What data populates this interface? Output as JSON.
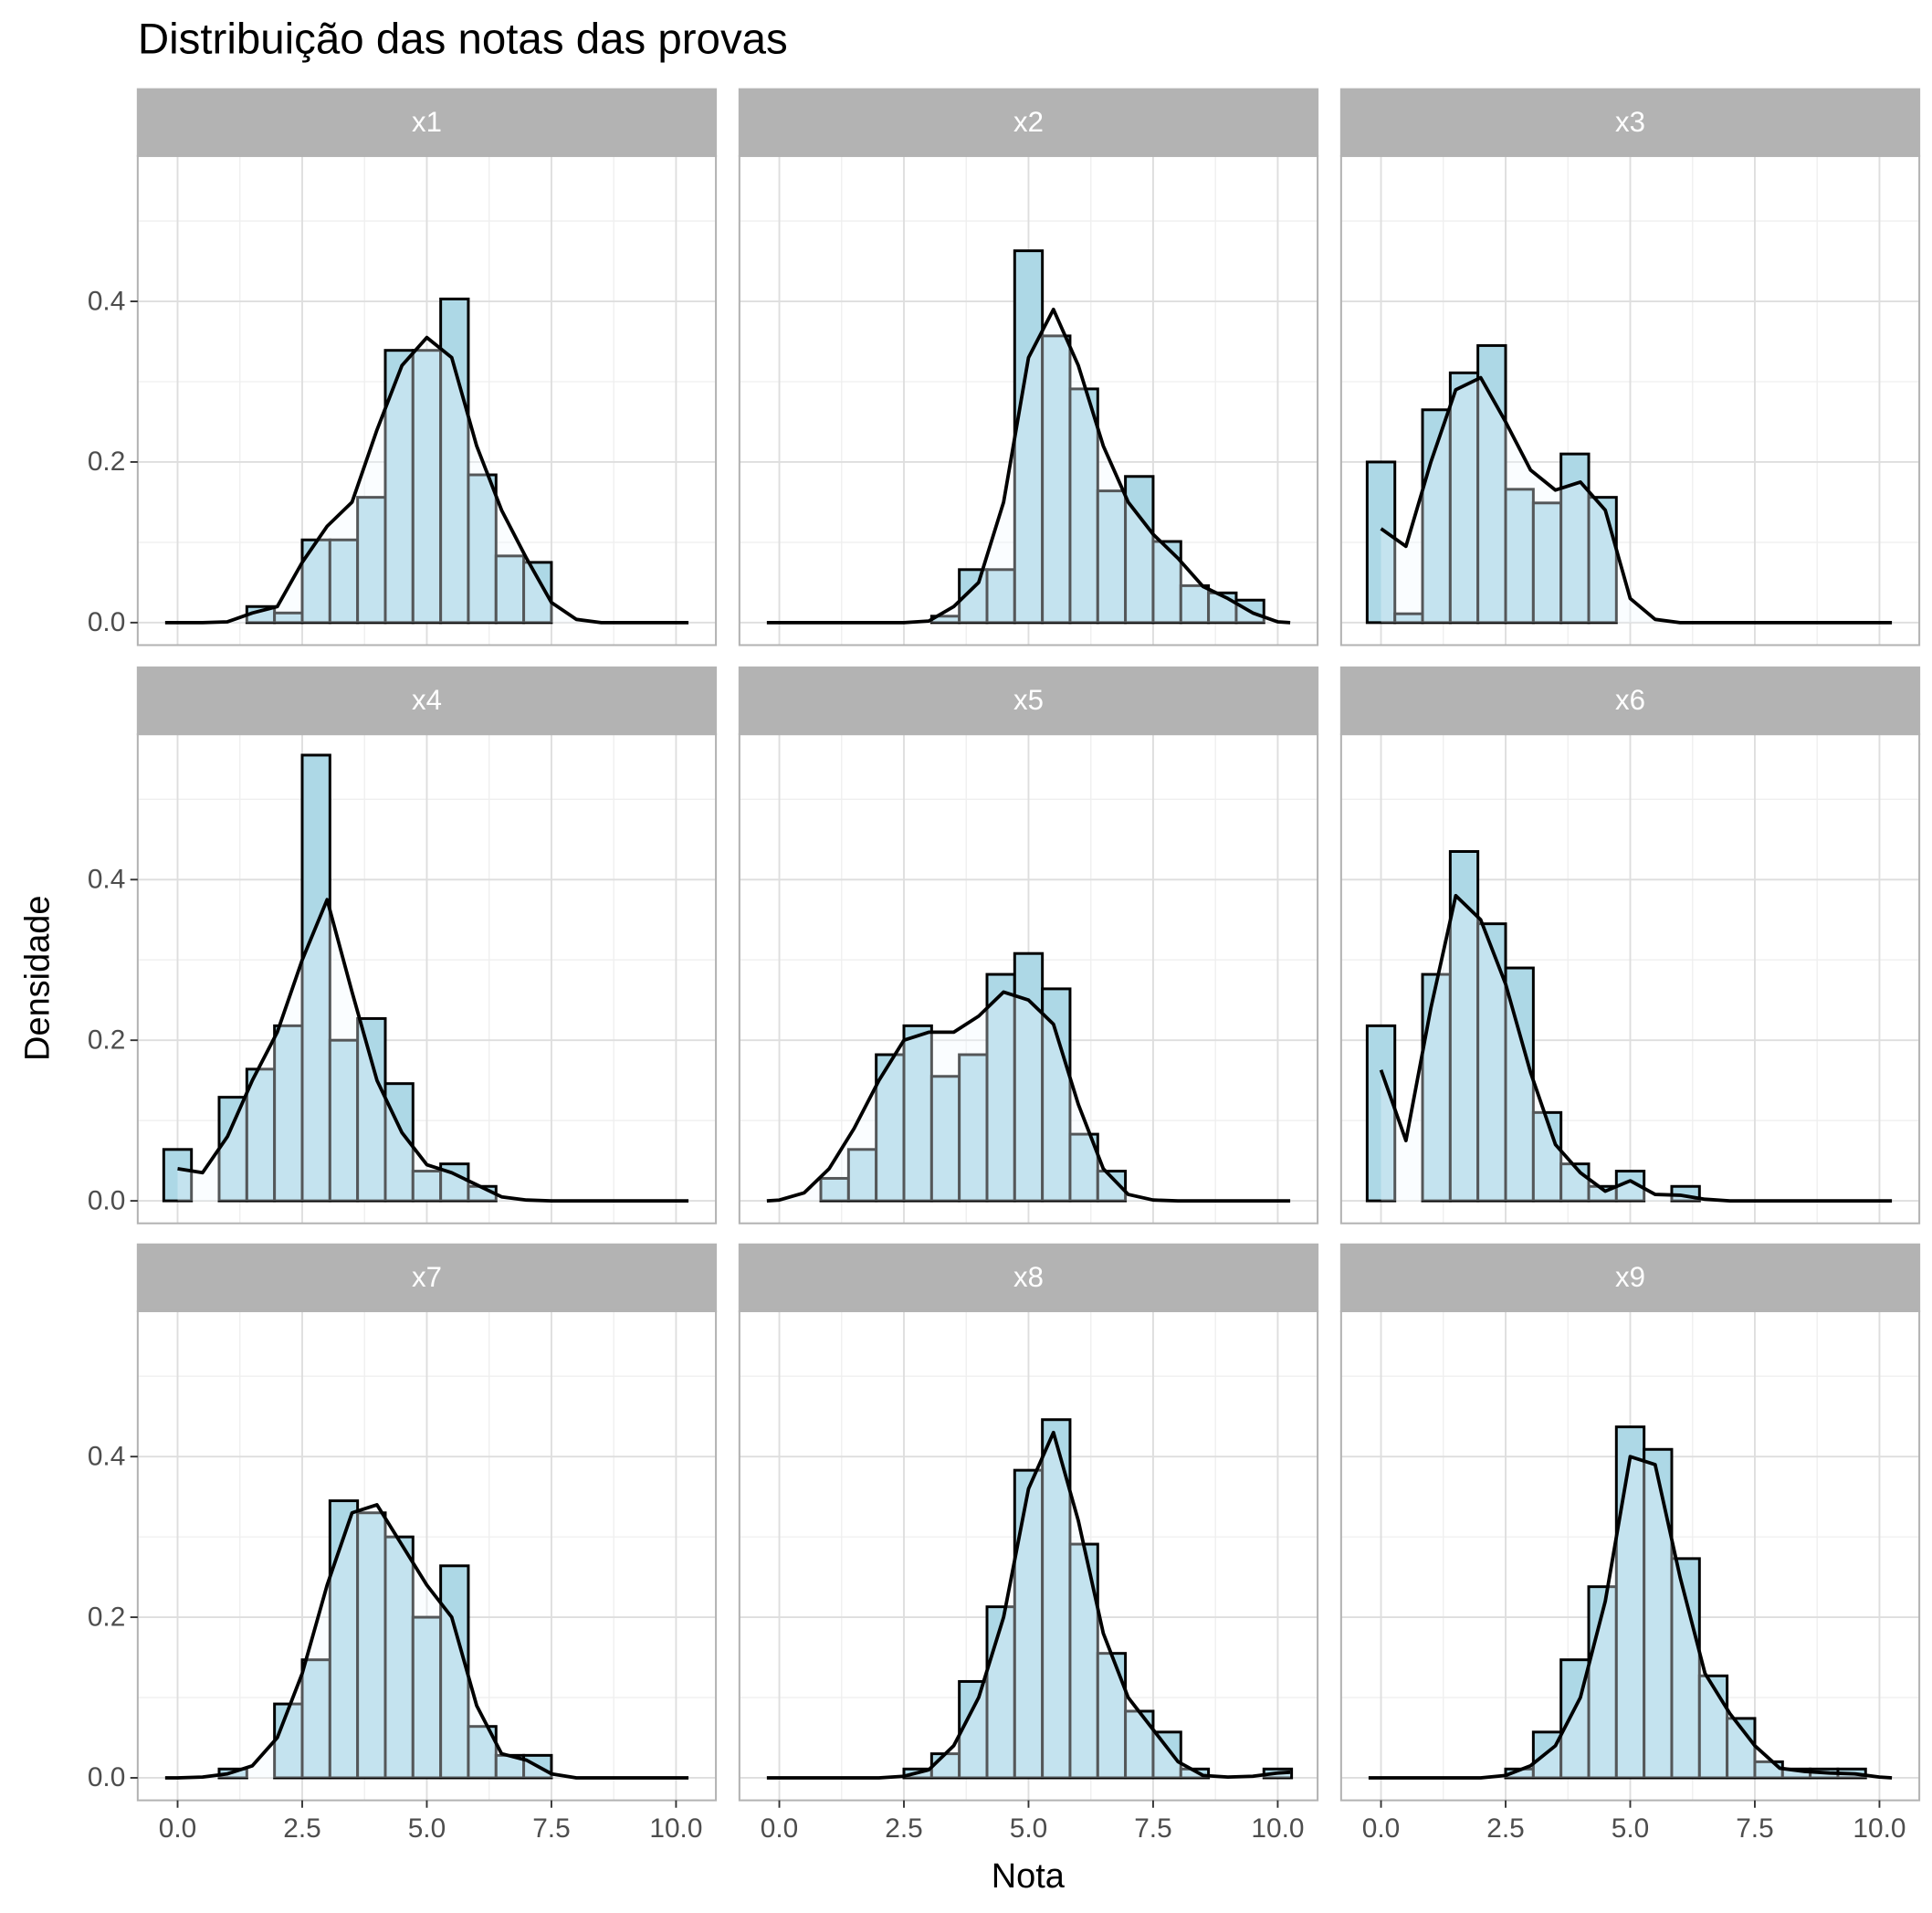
{
  "title": "Distribuição das notas das provas",
  "x_label": "Nota",
  "y_label": "Densidade",
  "xlim": [
    -0.8,
    10.8
  ],
  "ylim": [
    -0.028,
    0.581
  ],
  "xticks": [
    {
      "value": 0,
      "label": "0.0"
    },
    2.5,
    {
      "value": 5,
      "label": "5.0"
    },
    7.5,
    {
      "value": 10,
      "label": "10.0"
    }
  ],
  "yticks": [
    {
      "value": 0,
      "label": "0.0"
    },
    0.2,
    0.4
  ],
  "grid": true,
  "bar_color": "#add8e6",
  "line_color": "#000000",
  "density_x": [
    -0.25,
    0,
    0.5,
    1,
    1.5,
    2,
    2.5,
    3,
    3.5,
    4,
    4.5,
    5,
    5.5,
    6,
    6.5,
    7,
    7.5,
    8,
    8.5,
    9,
    9.5,
    10,
    10.25
  ],
  "chart_data": [
    {
      "type": "histogram",
      "title": "x1",
      "bins": [
        -0.278,
        0.278,
        0.833,
        1.389,
        1.944,
        2.5,
        3.056,
        3.611,
        4.167,
        4.722,
        5.278,
        5.833,
        6.389,
        6.944,
        7.5,
        8.056,
        8.611,
        9.167,
        9.722,
        10.278
      ],
      "values": [
        0,
        0,
        0,
        0.02,
        0.012,
        0.103,
        0.103,
        0.156,
        0.339,
        0.339,
        0.403,
        0.184,
        0.083,
        0.075,
        0,
        0,
        0,
        0,
        0
      ],
      "density": [
        0,
        0,
        0,
        0.001,
        0.012,
        0.02,
        0.075,
        0.12,
        0.15,
        0.24,
        0.32,
        0.355,
        0.33,
        0.22,
        0.14,
        0.08,
        0.025,
        0.004,
        0,
        0,
        0,
        0,
        0
      ]
    },
    {
      "type": "histogram",
      "title": "x2",
      "bins": [
        -0.278,
        0.278,
        0.833,
        1.389,
        1.944,
        2.5,
        3.056,
        3.611,
        4.167,
        4.722,
        5.278,
        5.833,
        6.389,
        6.944,
        7.5,
        8.056,
        8.611,
        9.167,
        9.722,
        10.278
      ],
      "values": [
        0,
        0,
        0,
        0,
        0,
        0,
        0.008,
        0.066,
        0.066,
        0.463,
        0.357,
        0.291,
        0.164,
        0.182,
        0.101,
        0.046,
        0.037,
        0.028,
        0
      ],
      "density": [
        0,
        0,
        0,
        0,
        0,
        0,
        0,
        0.002,
        0.02,
        0.05,
        0.15,
        0.33,
        0.39,
        0.32,
        0.22,
        0.15,
        0.11,
        0.08,
        0.045,
        0.03,
        0.012,
        0.001,
        0
      ]
    },
    {
      "type": "histogram",
      "title": "x3",
      "bins": [
        -0.278,
        0.278,
        0.833,
        1.389,
        1.944,
        2.5,
        3.056,
        3.611,
        4.167,
        4.722,
        5.278,
        5.833,
        6.389,
        6.944,
        7.5,
        8.056,
        8.611,
        9.167,
        9.722,
        10.278
      ],
      "values": [
        0.2,
        0.011,
        0.265,
        0.311,
        0.345,
        0.166,
        0.149,
        0.21,
        0.156,
        0,
        0,
        0,
        0,
        0,
        0,
        0,
        0,
        0,
        0
      ],
      "density": [
        null,
        0.117,
        0.095,
        0.2,
        0.29,
        0.305,
        0.25,
        0.19,
        0.165,
        0.175,
        0.14,
        0.03,
        0.004,
        0,
        0,
        0,
        0,
        0,
        0,
        0,
        0,
        0,
        0
      ]
    },
    {
      "type": "histogram",
      "title": "x4",
      "bins": [
        -0.278,
        0.278,
        0.833,
        1.389,
        1.944,
        2.5,
        3.056,
        3.611,
        4.167,
        4.722,
        5.278,
        5.833,
        6.389,
        6.944,
        7.5,
        8.056,
        8.611,
        9.167,
        9.722,
        10.278
      ],
      "values": [
        0.064,
        0,
        0.129,
        0.164,
        0.218,
        0.555,
        0.2,
        0.227,
        0.146,
        0.037,
        0.046,
        0.018,
        0,
        0,
        0,
        0,
        0,
        0,
        0
      ],
      "density": [
        null,
        0.04,
        0.035,
        0.08,
        0.15,
        0.21,
        0.3,
        0.375,
        0.26,
        0.15,
        0.085,
        0.045,
        0.035,
        0.02,
        0.005,
        0.001,
        0,
        0,
        0,
        0,
        0,
        0,
        0
      ]
    },
    {
      "type": "histogram",
      "title": "x5",
      "bins": [
        -0.278,
        0.278,
        0.833,
        1.389,
        1.944,
        2.5,
        3.056,
        3.611,
        4.167,
        4.722,
        5.278,
        5.833,
        6.389,
        6.944,
        7.5,
        8.056,
        8.611,
        9.167,
        9.722,
        10.278
      ],
      "values": [
        0,
        0,
        0.028,
        0.064,
        0.182,
        0.218,
        0.155,
        0.182,
        0.282,
        0.308,
        0.264,
        0.083,
        0.037,
        0,
        0,
        0,
        0,
        0,
        0
      ],
      "density": [
        0,
        0.001,
        0.01,
        0.04,
        0.09,
        0.15,
        0.2,
        0.21,
        0.21,
        0.23,
        0.26,
        0.25,
        0.22,
        0.12,
        0.04,
        0.008,
        0.001,
        0,
        0,
        0,
        0,
        0,
        0
      ]
    },
    {
      "type": "histogram",
      "title": "x6",
      "bins": [
        -0.278,
        0.278,
        0.833,
        1.389,
        1.944,
        2.5,
        3.056,
        3.611,
        4.167,
        4.722,
        5.278,
        5.833,
        6.389,
        6.944,
        7.5,
        8.056,
        8.611,
        9.167,
        9.722,
        10.278
      ],
      "values": [
        0.218,
        0,
        0.282,
        0.435,
        0.345,
        0.29,
        0.11,
        0.046,
        0.018,
        0.037,
        0,
        0.018,
        0,
        0,
        0,
        0,
        0,
        0,
        0
      ],
      "density": [
        null,
        0.163,
        0.075,
        0.24,
        0.38,
        0.35,
        0.27,
        0.16,
        0.07,
        0.035,
        0.012,
        0.025,
        0.008,
        0.007,
        0.002,
        0,
        0,
        0,
        0,
        0,
        0,
        0,
        0
      ]
    },
    {
      "type": "histogram",
      "title": "x7",
      "bins": [
        -0.278,
        0.278,
        0.833,
        1.389,
        1.944,
        2.5,
        3.056,
        3.611,
        4.167,
        4.722,
        5.278,
        5.833,
        6.389,
        6.944,
        7.5,
        8.056,
        8.611,
        9.167,
        9.722,
        10.278
      ],
      "values": [
        0,
        0,
        0.011,
        0,
        0.092,
        0.147,
        0.345,
        0.33,
        0.3,
        0.2,
        0.264,
        0.064,
        0.028,
        0.028,
        0,
        0,
        0,
        0,
        0
      ],
      "density": [
        0,
        0,
        0.001,
        0.005,
        0.015,
        0.05,
        0.13,
        0.24,
        0.33,
        0.34,
        0.29,
        0.24,
        0.2,
        0.09,
        0.03,
        0.022,
        0.005,
        0,
        0,
        0,
        0,
        0,
        0
      ]
    },
    {
      "type": "histogram",
      "title": "x8",
      "bins": [
        -0.278,
        0.278,
        0.833,
        1.389,
        1.944,
        2.5,
        3.056,
        3.611,
        4.167,
        4.722,
        5.278,
        5.833,
        6.389,
        6.944,
        7.5,
        8.056,
        8.611,
        9.167,
        9.722,
        10.278
      ],
      "values": [
        0,
        0,
        0,
        0,
        0,
        0.011,
        0.03,
        0.12,
        0.213,
        0.383,
        0.446,
        0.291,
        0.155,
        0.083,
        0.057,
        0.011,
        0,
        0,
        0.011
      ],
      "density": [
        0,
        0,
        0,
        0,
        0,
        0,
        0.002,
        0.01,
        0.04,
        0.1,
        0.2,
        0.36,
        0.43,
        0.32,
        0.18,
        0.1,
        0.06,
        0.02,
        0.003,
        0.001,
        0.002,
        0.006,
        0.007
      ]
    },
    {
      "type": "histogram",
      "title": "x9",
      "bins": [
        -0.278,
        0.278,
        0.833,
        1.389,
        1.944,
        2.5,
        3.056,
        3.611,
        4.167,
        4.722,
        5.278,
        5.833,
        6.389,
        6.944,
        7.5,
        8.056,
        8.611,
        9.167,
        9.722,
        10.278
      ],
      "values": [
        0,
        0,
        0,
        0,
        0,
        0.011,
        0.057,
        0.147,
        0.238,
        0.437,
        0.409,
        0.273,
        0.127,
        0.074,
        0.02,
        0.011,
        0.011,
        0.011,
        0
      ],
      "density": [
        0,
        0,
        0,
        0,
        0,
        0,
        0.003,
        0.015,
        0.04,
        0.1,
        0.22,
        0.4,
        0.39,
        0.25,
        0.13,
        0.08,
        0.04,
        0.012,
        0.008,
        0.006,
        0.005,
        0.001,
        0
      ]
    }
  ]
}
